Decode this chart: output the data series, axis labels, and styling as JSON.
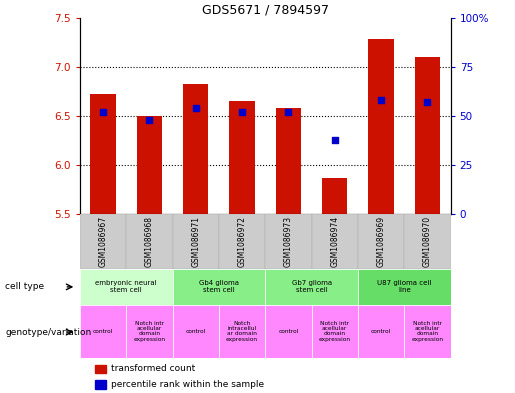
{
  "title": "GDS5671 / 7894597",
  "samples": [
    "GSM1086967",
    "GSM1086968",
    "GSM1086971",
    "GSM1086972",
    "GSM1086973",
    "GSM1086974",
    "GSM1086969",
    "GSM1086970"
  ],
  "bar_values": [
    6.72,
    6.5,
    6.83,
    6.65,
    6.58,
    5.87,
    7.28,
    7.1
  ],
  "blue_dot_values": [
    52,
    48,
    54,
    52,
    52,
    38,
    58,
    57
  ],
  "ylim": [
    5.5,
    7.5
  ],
  "y2lim": [
    0,
    100
  ],
  "yticks": [
    5.5,
    6.0,
    6.5,
    7.0,
    7.5
  ],
  "y2ticks": [
    0,
    25,
    50,
    75,
    100
  ],
  "bar_color": "#cc1100",
  "dot_color": "#0000cc",
  "grid_color": "#000000",
  "cell_type_data": [
    [
      0,
      2,
      "embryonic neural\nstem cell",
      "#ccffcc"
    ],
    [
      2,
      4,
      "Gb4 glioma\nstem cell",
      "#88ee88"
    ],
    [
      4,
      6,
      "Gb7 glioma\nstem cell",
      "#88ee88"
    ],
    [
      6,
      8,
      "U87 glioma cell\nline",
      "#66dd66"
    ]
  ],
  "geno_data": [
    [
      0,
      1,
      "control",
      "#ff88ff"
    ],
    [
      1,
      2,
      "Notch intr\nacellular\ndomain\nexpression",
      "#ff88ff"
    ],
    [
      2,
      3,
      "control",
      "#ff88ff"
    ],
    [
      3,
      4,
      "Notch\nintracellul\nar domain\nexpression",
      "#ff88ff"
    ],
    [
      4,
      5,
      "control",
      "#ff88ff"
    ],
    [
      5,
      6,
      "Notch intr\nacellular\ndomain\nexpression",
      "#ff88ff"
    ],
    [
      6,
      7,
      "control",
      "#ff88ff"
    ],
    [
      7,
      8,
      "Notch intr\nacellular\ndomain\nexpression",
      "#ff88ff"
    ]
  ],
  "tick_label_color_left": "#cc1100",
  "tick_label_color_right": "#0000cc",
  "bar_width": 0.55
}
